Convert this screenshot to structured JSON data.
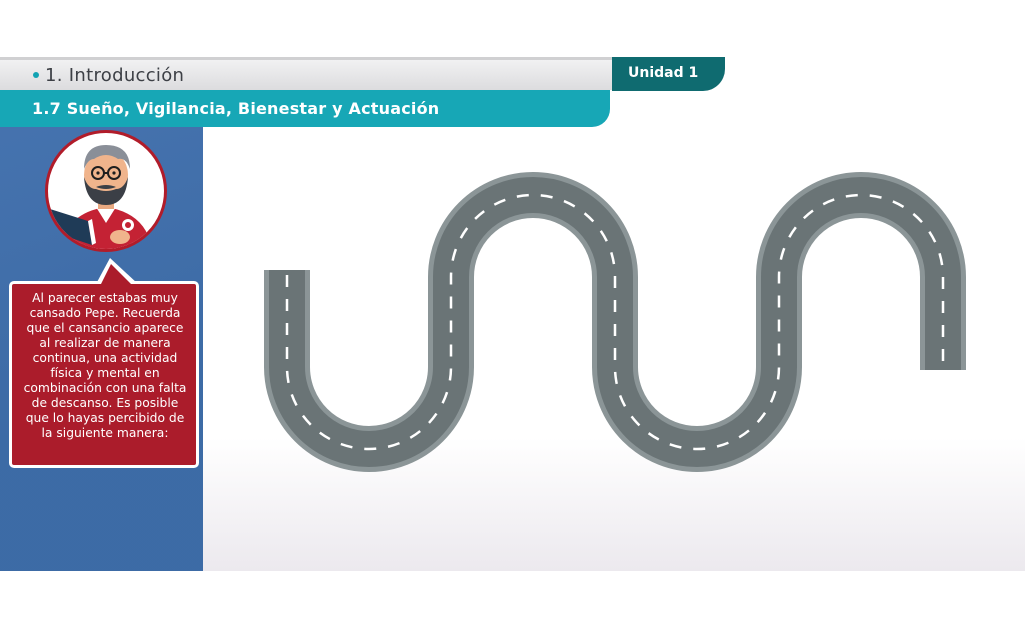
{
  "header": {
    "section_title": "1. Introducción",
    "unit_label": "Unidad 1",
    "subtitle": "1.7 Sueño, Vigilancia, Bienestar y Actuación"
  },
  "sidebar": {
    "message": "Al parecer estabas muy cansado Pepe. Recuerda que el cansancio aparece al realizar de manera continua, una actividad física y mental en combinación con una falta de descanso.  Es posible que lo hayas percibido de la siguiente manera:"
  },
  "colors": {
    "accent_teal": "#17a7b6",
    "unit_tab": "#0f6b70",
    "panel_blue": "#3e6ea8",
    "speech_red": "#ab1c2b",
    "road_gray": "#6a7476",
    "road_edge": "#8b9597"
  },
  "icons": {
    "avatar": "teacher-reading-book-illustration",
    "road": "winding-road-illustration"
  }
}
